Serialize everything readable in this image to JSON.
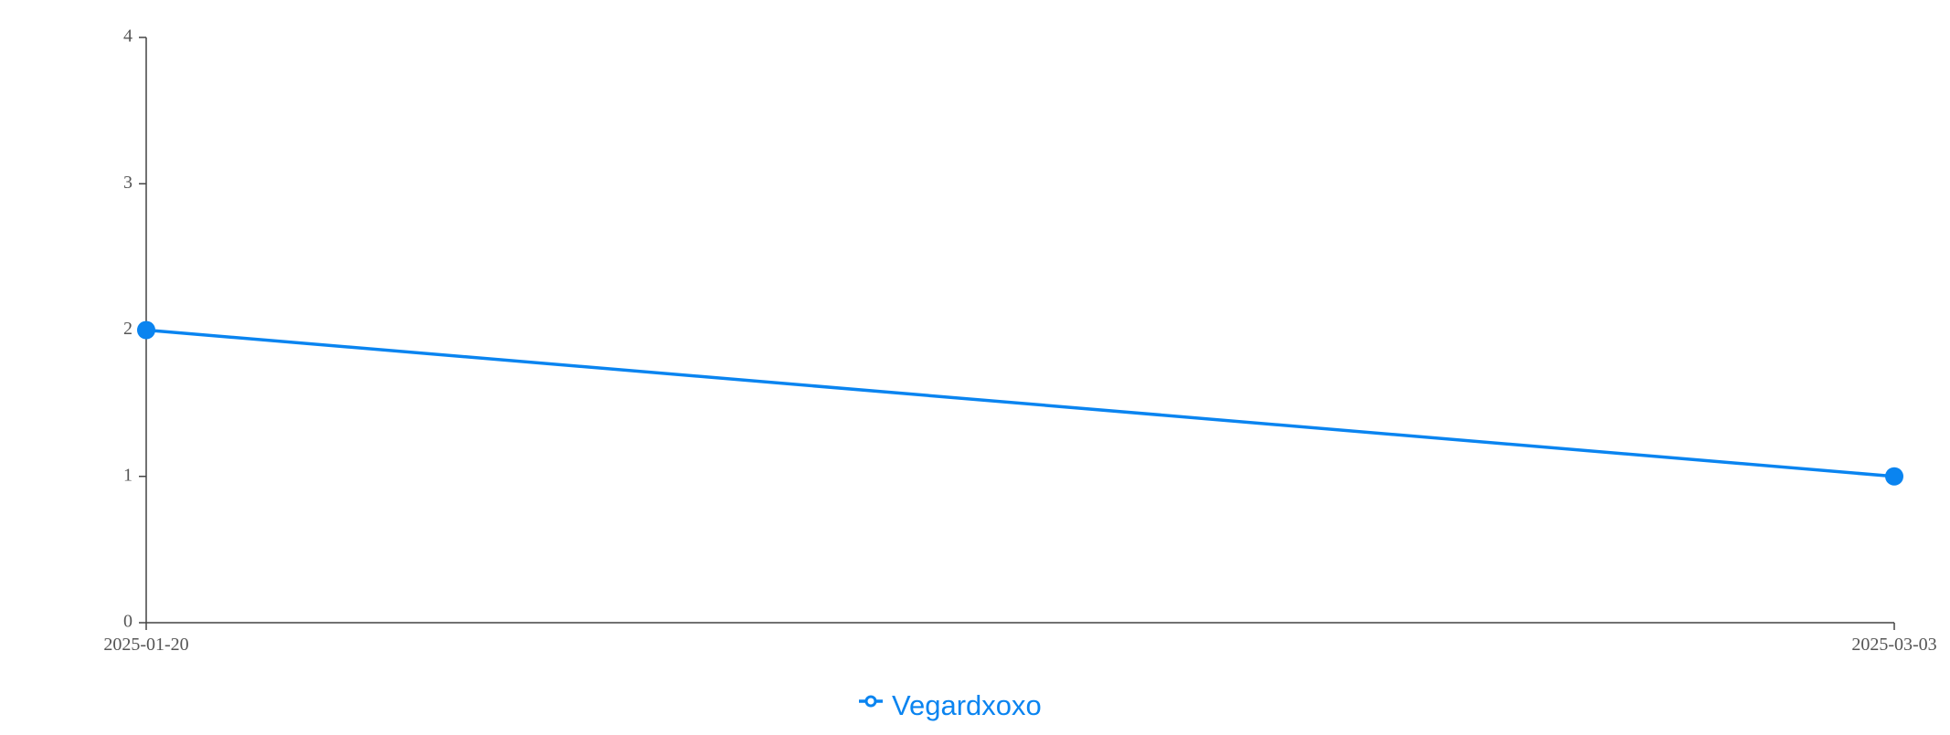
{
  "chart_data": {
    "type": "line",
    "x": [
      "2025-01-20",
      "2025-03-03"
    ],
    "series": [
      {
        "name": "Vegardxoxo",
        "values": [
          2,
          1
        ],
        "color": "#0a84f0"
      }
    ],
    "ylim": [
      0,
      4
    ],
    "yticks": [
      0,
      1,
      2,
      3,
      4
    ],
    "xticks": [
      "2025-01-20",
      "2025-03-03"
    ],
    "grid": false,
    "legend_position": "bottom-center",
    "legend_marker": "line-with-open-circle"
  }
}
